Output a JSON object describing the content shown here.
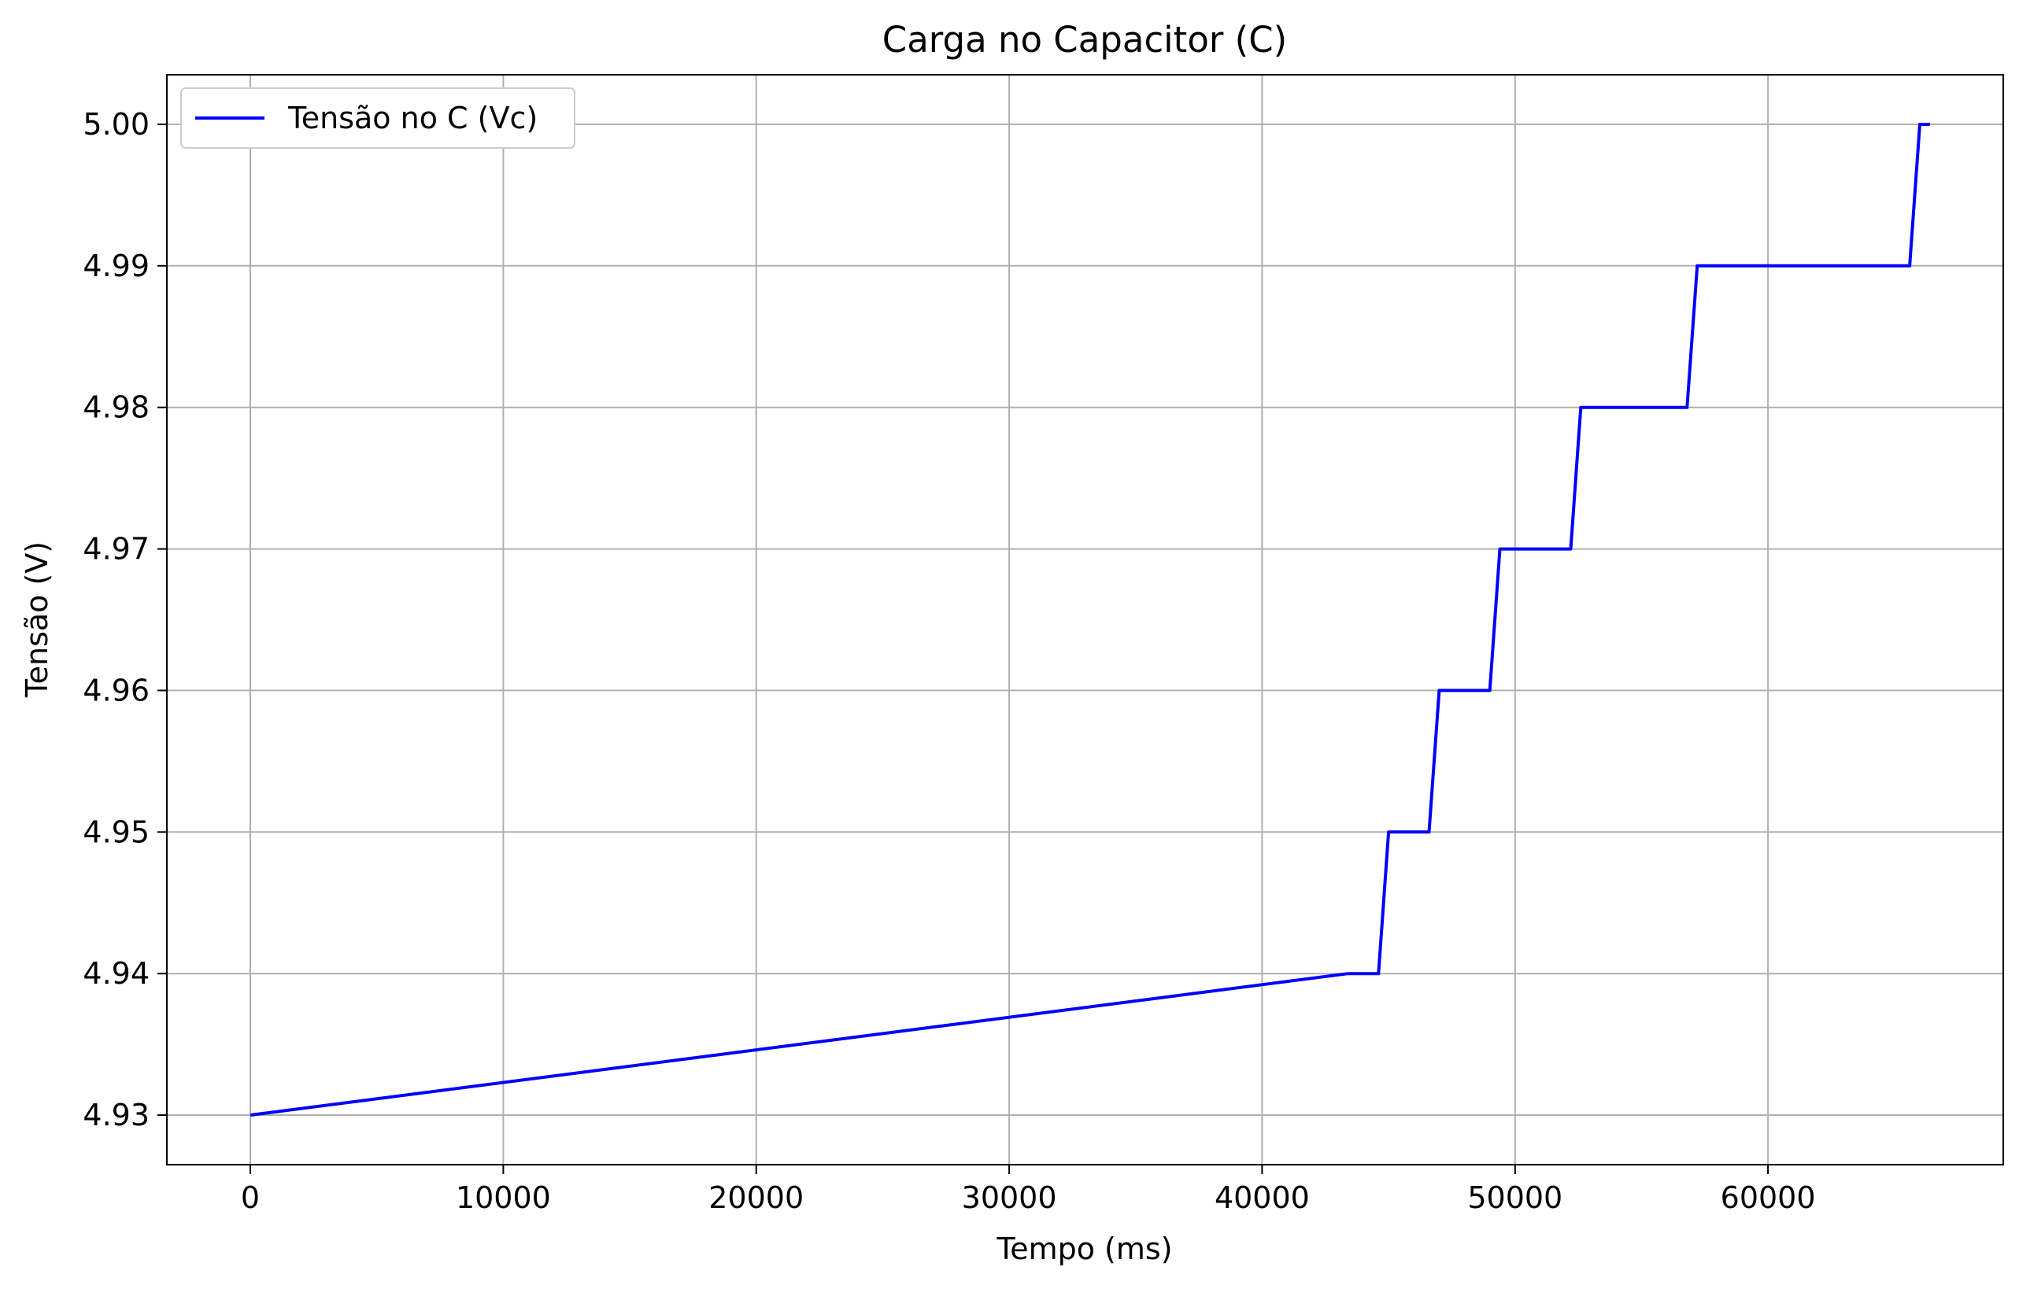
{
  "chart_data": {
    "type": "line",
    "title": "Carga no Capacitor (C)",
    "xlabel": "Tempo (ms)",
    "ylabel": "Tensão (V)",
    "xlim": [
      -3300,
      69300
    ],
    "ylim": [
      4.9265,
      5.0035
    ],
    "xticks": [
      0,
      10000,
      20000,
      30000,
      40000,
      50000,
      60000
    ],
    "xtick_labels": [
      "0",
      "10000",
      "20000",
      "30000",
      "40000",
      "50000",
      "60000"
    ],
    "yticks": [
      4.93,
      4.94,
      4.95,
      4.96,
      4.97,
      4.98,
      4.99,
      5.0
    ],
    "ytick_labels": [
      "4.93",
      "4.94",
      "4.95",
      "4.96",
      "4.97",
      "4.98",
      "4.99",
      "5.00"
    ],
    "grid": true,
    "legend_position": "upper-left",
    "series": [
      {
        "name": "Tensão no C (Vc)",
        "color": "#0000ff",
        "x": [
          0,
          43400,
          44600,
          45000,
          46600,
          47000,
          49000,
          49400,
          52200,
          52600,
          56800,
          57200,
          65600,
          66000,
          66400
        ],
        "y": [
          4.93,
          4.94,
          4.94,
          4.95,
          4.95,
          4.96,
          4.96,
          4.97,
          4.97,
          4.98,
          4.98,
          4.99,
          4.99,
          5.0,
          5.0
        ]
      }
    ]
  }
}
